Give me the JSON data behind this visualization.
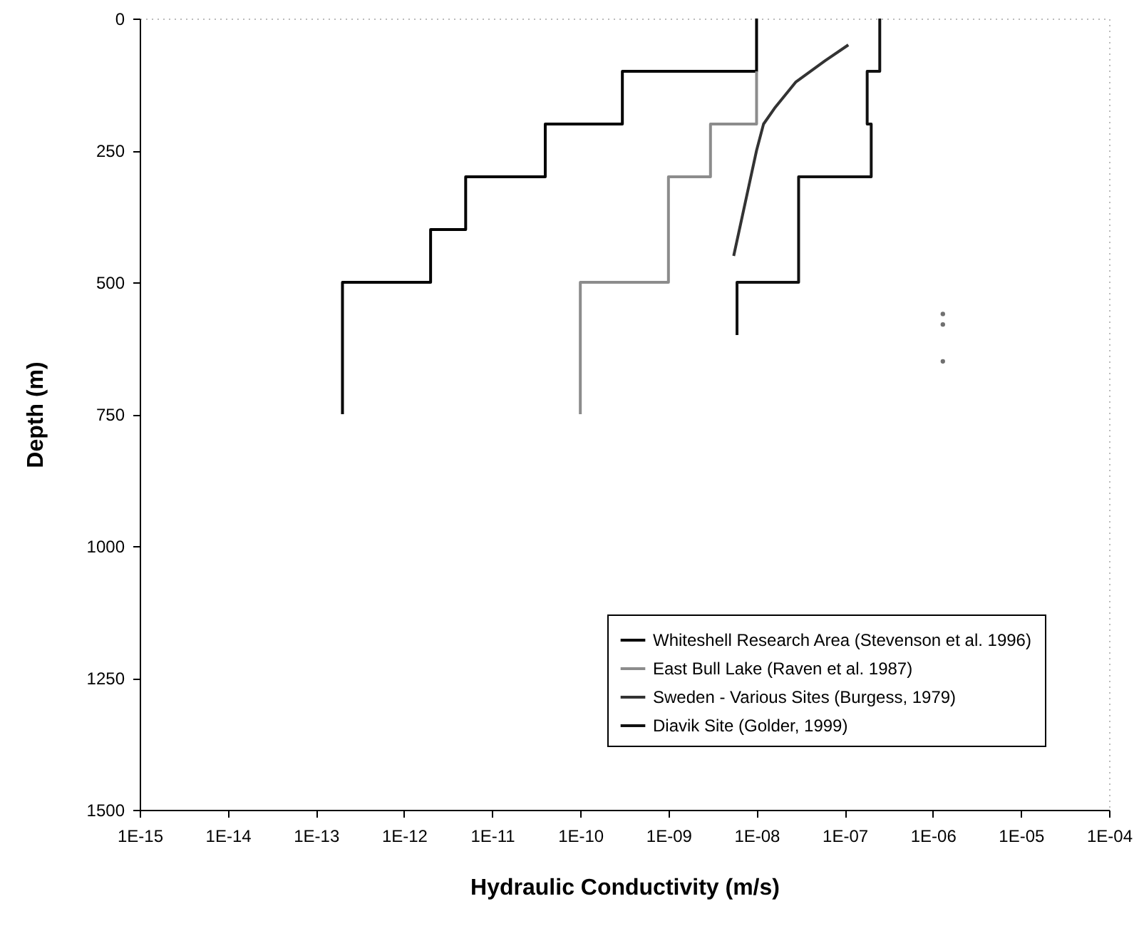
{
  "chart_data": {
    "type": "line",
    "xlabel": "Hydraulic Conductivity (m/s)",
    "ylabel": "Depth (m)",
    "log": "x",
    "xlim": [
      1e-15,
      0.0001
    ],
    "xticks": [
      {
        "value": 1e-15,
        "label": "1E-15"
      },
      {
        "value": 1e-14,
        "label": "1E-14"
      },
      {
        "value": 1e-13,
        "label": "1E-13"
      },
      {
        "value": 1e-12,
        "label": "1E-12"
      },
      {
        "value": 1e-11,
        "label": "1E-11"
      },
      {
        "value": 1e-10,
        "label": "1E-10"
      },
      {
        "value": 1e-09,
        "label": "1E-09"
      },
      {
        "value": 1e-08,
        "label": "1E-08"
      },
      {
        "value": 1e-07,
        "label": "1E-07"
      },
      {
        "value": 1e-06,
        "label": "1E-06"
      },
      {
        "value": 1e-05,
        "label": "1E-05"
      },
      {
        "value": 0.0001,
        "label": "1E-04"
      }
    ],
    "ylim": [
      1500,
      0
    ],
    "yticks": [
      0,
      250,
      500,
      750,
      1000,
      1250,
      1500
    ],
    "legend": "bottom right",
    "series": [
      {
        "name": "Whiteshell Research Area (Stevenson et al. 1996)",
        "color": "#000000",
        "x": [
          2e-13,
          2e-13,
          2e-12,
          2e-12,
          5e-12,
          5e-12,
          4e-11,
          4e-11,
          3e-10,
          3e-10,
          1e-08,
          1e-08
        ],
        "values": [
          750,
          500,
          500,
          400,
          400,
          300,
          300,
          200,
          200,
          100,
          100,
          0
        ]
      },
      {
        "name": "East Bull Lake  (Raven et al. 1987)",
        "color": "#8c8c8c",
        "x": [
          1e-10,
          1e-10,
          1e-09,
          1e-09,
          3e-09,
          3e-09,
          1e-08,
          1e-08
        ],
        "values": [
          750,
          500,
          500,
          300,
          300,
          200,
          200,
          100
        ]
      },
      {
        "name": "Sweden - Various Sites (Burgess, 1979)",
        "color": "#333333",
        "x": [
          5.5e-09,
          1e-08,
          1.2e-08,
          1.6e-08,
          2.8e-08,
          6e-08,
          1.1e-07
        ],
        "values": [
          450,
          250,
          200,
          170,
          120,
          80,
          50
        ]
      },
      {
        "name": "Diavik Site (Golder, 1999)",
        "color": "#111111",
        "x": [
          2.5e-07,
          2.5e-07,
          1.8e-07,
          1.8e-07,
          2e-07,
          2e-07,
          3e-08,
          3e-08,
          6e-09,
          6e-09
        ],
        "values": [
          0,
          100,
          100,
          200,
          200,
          300,
          300,
          500,
          500,
          600
        ]
      },
      {
        "type": "scatter",
        "marker": "circle",
        "color": "#333333",
        "x": [
          1.3e-06,
          1.3e-06,
          1.3e-06
        ],
        "values": [
          560,
          580,
          650
        ]
      }
    ]
  }
}
